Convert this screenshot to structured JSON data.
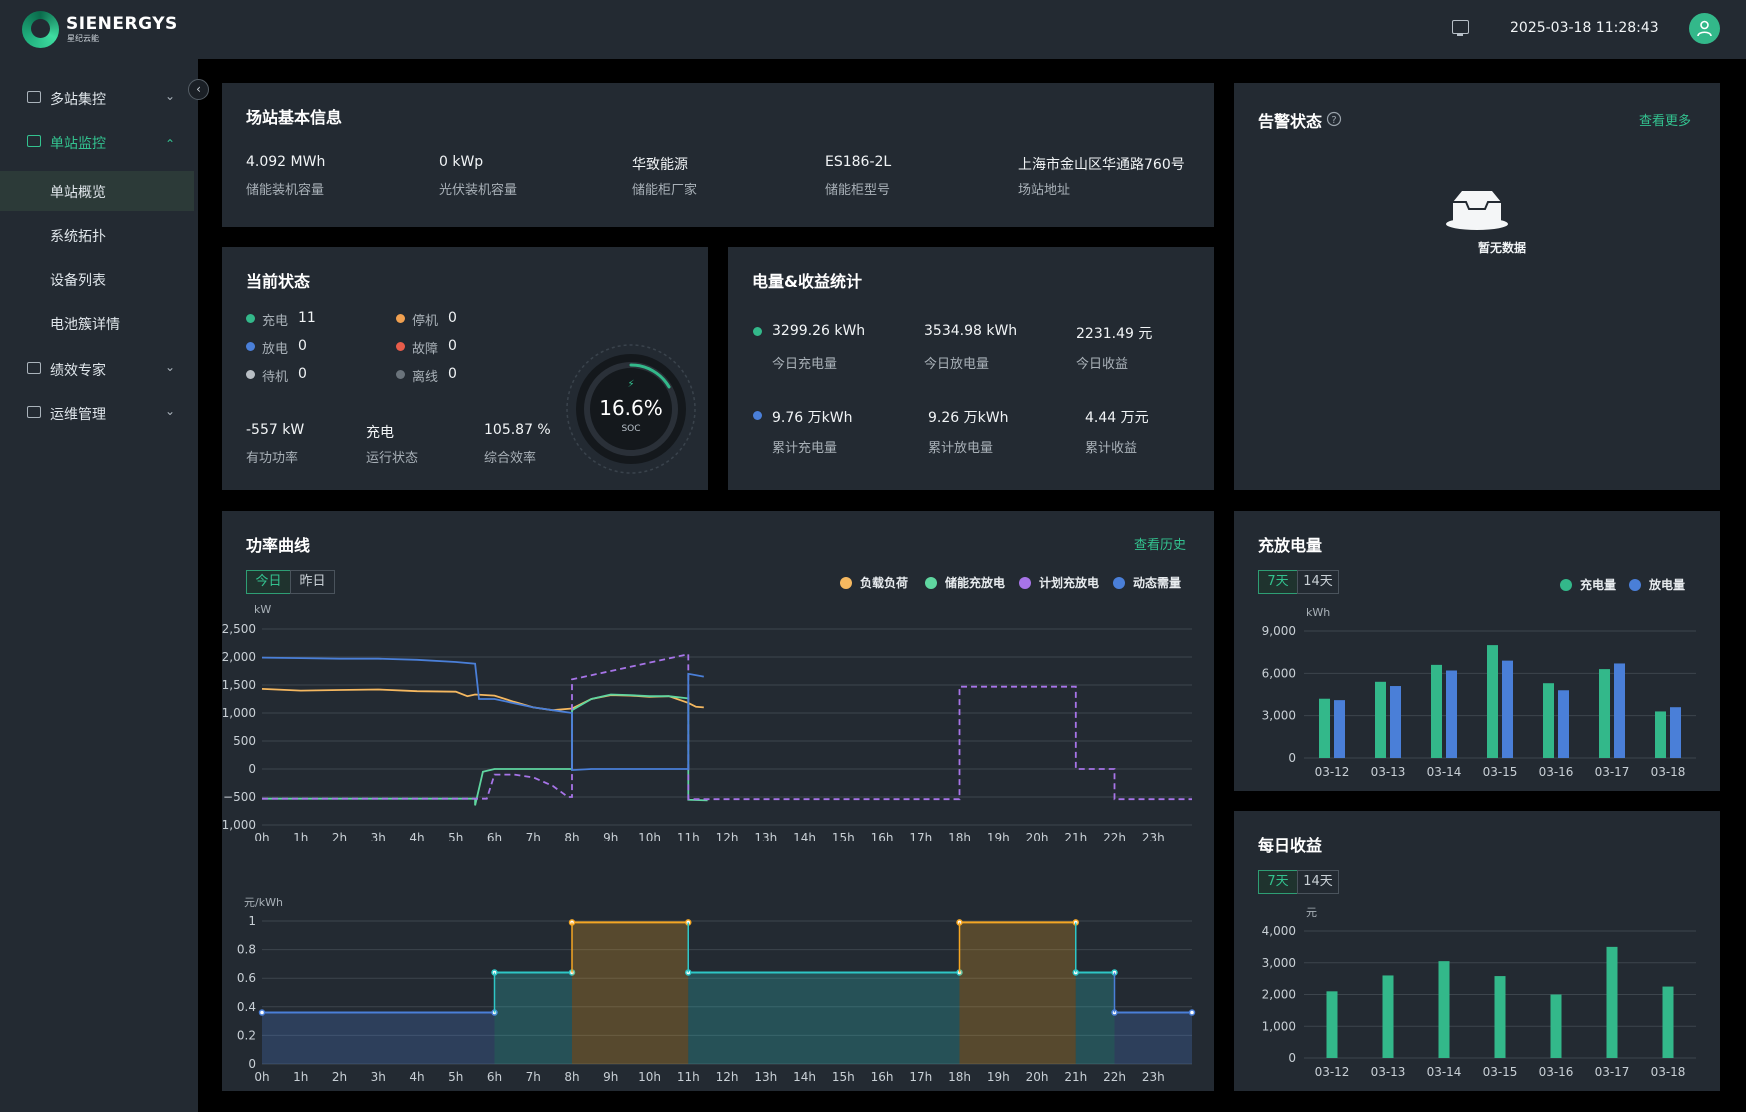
{
  "header": {
    "brand": "SIENERGYS",
    "brand_sub": "星纪云能",
    "datetime": "2025-03-18 11:28:43",
    "screen_icon": "monitor-icon",
    "avatar_icon": "user-icon"
  },
  "sidebar": {
    "collapse_icon": "chevron-left-icon",
    "groups": [
      {
        "label": "多站集控",
        "icon": "building-icon"
      },
      {
        "label": "单站监控",
        "icon": "monitor-icon"
      },
      {
        "label": "绩效专家",
        "icon": "chart-icon"
      },
      {
        "label": "运维管理",
        "icon": "tools-icon"
      }
    ],
    "sub_items": [
      "单站概览",
      "系统拓扑",
      "设备列表",
      "电池簇详情"
    ]
  },
  "station_info": {
    "title": "场站基本信息",
    "items": [
      {
        "value": "4.092 MWh",
        "label": "储能装机容量"
      },
      {
        "value": "0 kWp",
        "label": "光伏装机容量"
      },
      {
        "value": "华致能源",
        "label": "储能柜厂家"
      },
      {
        "value": "ES186-2L",
        "label": "储能柜型号"
      },
      {
        "value": "上海市金山区华通路760号",
        "label": "场站地址"
      }
    ]
  },
  "alarm": {
    "title": "告警状态",
    "more": "查看更多",
    "empty": "暂无数据",
    "help_icon": "question-icon",
    "empty_icon": "inbox-icon"
  },
  "current_status": {
    "title": "当前状态",
    "states": [
      {
        "label": "充电",
        "count": "11",
        "color": "#33b88a"
      },
      {
        "label": "停机",
        "count": "0",
        "color": "#f0a050"
      },
      {
        "label": "放电",
        "count": "0",
        "color": "#4a7fd8"
      },
      {
        "label": "故障",
        "count": "0",
        "color": "#e85c4a"
      },
      {
        "label": "待机",
        "count": "0",
        "color": "#b8bec4"
      },
      {
        "label": "离线",
        "count": "0",
        "color": "#6a737b"
      }
    ],
    "metrics": [
      {
        "value": "-557 kW",
        "label": "有功功率"
      },
      {
        "value": "充电",
        "label": "运行状态"
      },
      {
        "value": "105.87 %",
        "label": "综合效率"
      }
    ],
    "soc": {
      "value": "16.6%",
      "label": "SOC",
      "percent": 16.6
    }
  },
  "energy_stats": {
    "title": "电量&收益统计",
    "today": [
      {
        "value": "3299.26 kWh",
        "label": "今日充电量"
      },
      {
        "value": "3534.98 kWh",
        "label": "今日放电量"
      },
      {
        "value": "2231.49 元",
        "label": "今日收益"
      }
    ],
    "total": [
      {
        "value": "9.76 万kWh",
        "label": "累计充电量"
      },
      {
        "value": "9.26 万kWh",
        "label": "累计放电量"
      },
      {
        "value": "4.44 万元",
        "label": "累计收益"
      }
    ],
    "colors": {
      "today": "#33b88a",
      "total": "#4a7fd8"
    }
  },
  "power_curve": {
    "title": "功率曲线",
    "history": "查看历史",
    "tabs": [
      "今日",
      "昨日"
    ],
    "legend": [
      "负载负荷",
      "储能充放电",
      "计划充放电",
      "动态需量"
    ],
    "legend_colors": [
      "#f5b860",
      "#5fd6a0",
      "#a774e8",
      "#4a7fd8"
    ]
  },
  "chart_data": [
    {
      "type": "line",
      "title": "",
      "ylabel": "kW",
      "ylim": [
        -1000,
        2500
      ],
      "yticks": [
        "2,500",
        "2,000",
        "1,500",
        "1,000",
        "500",
        "0",
        "−500",
        "−1,000"
      ],
      "categories": [
        "0h",
        "1h",
        "2h",
        "3h",
        "4h",
        "5h",
        "6h",
        "7h",
        "8h",
        "9h",
        "10h",
        "11h",
        "12h",
        "13h",
        "14h",
        "15h",
        "16h",
        "17h",
        "18h",
        "19h",
        "20h",
        "21h",
        "22h",
        "23h"
      ],
      "series": [
        {
          "name": "负载负荷",
          "x": [
            0,
            1,
            2,
            3,
            4,
            5,
            5.3,
            5.5,
            6,
            6.5,
            7,
            7.5,
            8,
            8.5,
            9,
            9.5,
            10,
            10.5,
            11,
            11.2,
            11.4
          ],
          "y": [
            1430,
            1400,
            1410,
            1420,
            1390,
            1380,
            1300,
            1330,
            1310,
            1200,
            1100,
            1050,
            1080,
            1250,
            1320,
            1310,
            1290,
            1300,
            1180,
            1110,
            1100
          ]
        },
        {
          "name": "储能充放电",
          "x": [
            0,
            5.5,
            5.5,
            5.7,
            6,
            7,
            8,
            8,
            8.5,
            9,
            9.5,
            10,
            10.5,
            11,
            11,
            11.5
          ],
          "y": [
            -530,
            -530,
            -650,
            -50,
            0,
            0,
            0,
            1050,
            1250,
            1330,
            1320,
            1300,
            1300,
            1260,
            -550,
            -560
          ]
        },
        {
          "name": "计划充放电",
          "x": [
            0,
            5.8,
            6,
            6.5,
            7,
            7.5,
            7.9,
            8,
            8,
            11,
            11,
            18,
            18,
            21,
            21,
            22,
            22,
            24
          ],
          "y": [
            -530,
            -530,
            -100,
            -100,
            -150,
            -300,
            -500,
            -500,
            1600,
            2050,
            -540,
            -540,
            1470,
            1470,
            0,
            0,
            -540,
            -540
          ]
        },
        {
          "name": "动态需量",
          "x": [
            0,
            1,
            2,
            3,
            4,
            5,
            5.5,
            5.6,
            6,
            7,
            7.5,
            8,
            8,
            8.5,
            9,
            10,
            11,
            11,
            11.4
          ],
          "y": [
            1990,
            1980,
            1970,
            1970,
            1950,
            1910,
            1880,
            1250,
            1250,
            1100,
            1050,
            1000,
            -20,
            0,
            0,
            0,
            0,
            1700,
            1650
          ]
        }
      ]
    },
    {
      "type": "area",
      "title": "",
      "ylabel": "元/kWh",
      "ylim": [
        0,
        1
      ],
      "yticks": [
        "1",
        "0.8",
        "0.6",
        "0.4",
        "0.2",
        "0"
      ],
      "categories": [
        "0h",
        "1h",
        "2h",
        "3h",
        "4h",
        "5h",
        "6h",
        "7h",
        "8h",
        "9h",
        "10h",
        "11h",
        "12h",
        "13h",
        "14h",
        "15h",
        "16h",
        "17h",
        "18h",
        "19h",
        "20h",
        "21h",
        "22h",
        "23h"
      ],
      "segments": [
        {
          "from": 0,
          "to": 6,
          "price": 0.36,
          "tier": "low"
        },
        {
          "from": 6,
          "to": 8,
          "price": 0.64,
          "tier": "flat"
        },
        {
          "from": 8,
          "to": 11,
          "price": 0.99,
          "tier": "peak"
        },
        {
          "from": 11,
          "to": 18,
          "price": 0.64,
          "tier": "flat"
        },
        {
          "from": 18,
          "to": 21,
          "price": 0.99,
          "tier": "peak"
        },
        {
          "from": 21,
          "to": 22,
          "price": 0.64,
          "tier": "flat"
        },
        {
          "from": 22,
          "to": 24,
          "price": 0.36,
          "tier": "low"
        }
      ],
      "tier_colors": {
        "low": "#4a7fd8",
        "flat": "#2ec6c6",
        "peak": "#f5a623"
      }
    },
    {
      "type": "bar",
      "title": "充放电量",
      "tabs": [
        "7天",
        "14天"
      ],
      "ylabel": "kWh",
      "ylim": [
        0,
        9000
      ],
      "yticks": [
        "9,000",
        "6,000",
        "3,000",
        "0"
      ],
      "legend": [
        "充电量",
        "放电量"
      ],
      "categories": [
        "03-12",
        "03-13",
        "03-14",
        "03-15",
        "03-16",
        "03-17",
        "03-18"
      ],
      "series": [
        {
          "name": "充电量",
          "color": "#33b88a",
          "values": [
            4200,
            5400,
            6600,
            8000,
            5300,
            6300,
            3300
          ]
        },
        {
          "name": "放电量",
          "color": "#4a7fd8",
          "values": [
            4100,
            5100,
            6200,
            6900,
            4800,
            6700,
            3600
          ]
        }
      ]
    },
    {
      "type": "bar",
      "title": "每日收益",
      "tabs": [
        "7天",
        "14天"
      ],
      "ylabel": "元",
      "ylim": [
        0,
        4000
      ],
      "yticks": [
        "4,000",
        "3,000",
        "2,000",
        "1,000",
        "0"
      ],
      "categories": [
        "03-12",
        "03-13",
        "03-14",
        "03-15",
        "03-16",
        "03-17",
        "03-18"
      ],
      "series": [
        {
          "name": "收益",
          "color": "#33b88a",
          "values": [
            2100,
            2600,
            3050,
            2580,
            2000,
            3500,
            2250
          ]
        }
      ]
    }
  ]
}
